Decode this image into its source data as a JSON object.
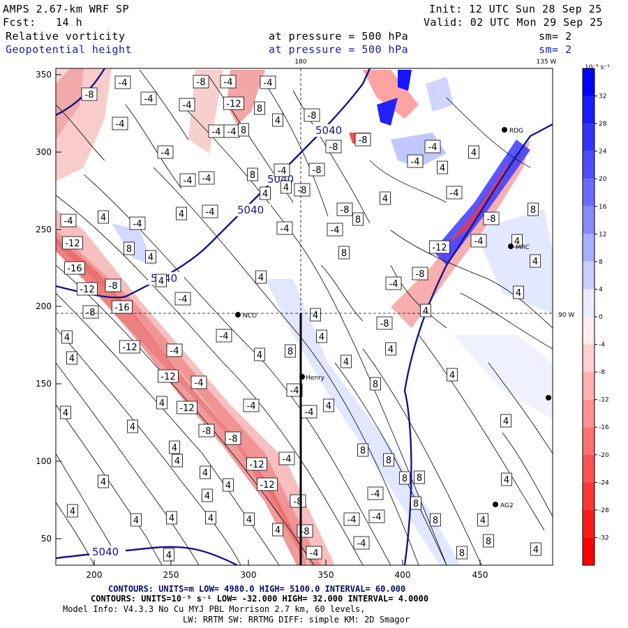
{
  "header": {
    "model": "AMPS 2.67-km WRF SP",
    "init": "Init: 12 UTC Sun 28 Sep 25",
    "fcst_label": "Fcst:",
    "fcst_value": "14 h",
    "valid": "Valid: 02 UTC Mon 29 Sep 25",
    "field1": "Relative vorticity",
    "field1_level": "at pressure =  500 hPa",
    "field1_sm": "sm= 2",
    "field2": "Geopotential height",
    "field2_level": "at pressure =  500 hPa",
    "field2_sm": "sm= 2"
  },
  "map": {
    "x_ticks": [
      "200",
      "250",
      "300",
      "350",
      "400",
      "450"
    ],
    "y_ticks": [
      "350",
      "300",
      "250",
      "200",
      "150",
      "100",
      "50"
    ],
    "lon_top_180": "180",
    "lon_top_135w": "135 W",
    "lon_right_90w": "90 W",
    "stations": [
      {
        "name": "NCO"
      },
      {
        "name": "Henry"
      },
      {
        "name": "RDG"
      },
      {
        "name": "MRC"
      },
      {
        "name": "AG2"
      }
    ],
    "height_contour_value": "5040",
    "height_labels": [
      "5040",
      "5040",
      "5040",
      "5040",
      "5040"
    ],
    "vorticity_labels": {
      "-4": "-4",
      "4": "4",
      "-8": "-8",
      "8": "8",
      "-12": "-12",
      "-16": "-16"
    }
  },
  "colorbar": {
    "unit_label": "10⁻⁵ s⁻¹",
    "ticks": [
      "32",
      "28",
      "24",
      "20",
      "16",
      "12",
      "8",
      "4",
      "0",
      "-4",
      "-8",
      "-12",
      "-16",
      "-20",
      "-24",
      "-28",
      "-32"
    ]
  },
  "footer": {
    "line1": "CONTOURS:  UNITS=m  LOW=  4980.0          HIGH=  5100.0         INTERVAL=   60.000",
    "line2": "CONTOURS:  UNITS=10⁻⁵ s⁻¹  LOW=  -32.000          HIGH=  32.000         INTERVAL=   4.0000",
    "line3": "Model Info: V4.3.3     No Cu    MYJ PBL  Morrison            2.7 km,   60 levels,",
    "line4": "LW: RRTM SW: RRTMG    DIFF: simple KM: 2D Smagor"
  },
  "colors": {
    "positive": "#0000ff",
    "negative": "#ff0000",
    "height_contour": "#14148c"
  }
}
